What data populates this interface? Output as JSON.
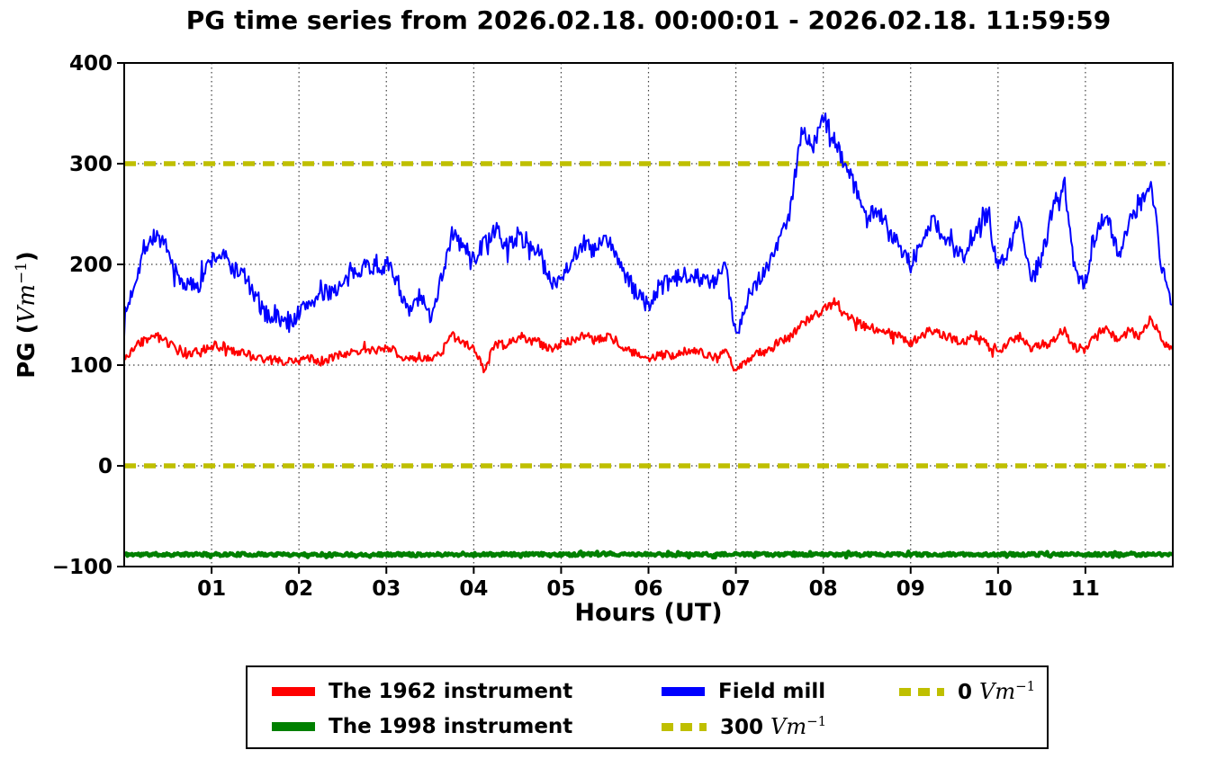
{
  "chart_data": {
    "type": "line",
    "title": "PG time series from 2026.02.18. 00:00:01 - 2026.02.18. 11:59:59",
    "xlabel": "Hours (UT)",
    "ylabel": {
      "prefix": "PG (",
      "unit": "Vm",
      "exp": "−1",
      "suffix": ")"
    },
    "xlim": [
      0,
      12
    ],
    "ylim": [
      -100,
      400
    ],
    "x_ticks": [
      {
        "v": 1,
        "label": "01"
      },
      {
        "v": 2,
        "label": "02"
      },
      {
        "v": 3,
        "label": "03"
      },
      {
        "v": 4,
        "label": "04"
      },
      {
        "v": 5,
        "label": "05"
      },
      {
        "v": 6,
        "label": "06"
      },
      {
        "v": 7,
        "label": "07"
      },
      {
        "v": 8,
        "label": "08"
      },
      {
        "v": 9,
        "label": "09"
      },
      {
        "v": 10,
        "label": "10"
      },
      {
        "v": 11,
        "label": "11"
      }
    ],
    "y_ticks": [
      {
        "v": 400,
        "label": "400"
      },
      {
        "v": 300,
        "label": "300"
      },
      {
        "v": 200,
        "label": "200"
      },
      {
        "v": 100,
        "label": "100"
      },
      {
        "v": 0,
        "label": "0"
      },
      {
        "v": -100,
        "label": "−100"
      }
    ],
    "grid": {
      "x_values": [
        1,
        2,
        3,
        4,
        5,
        6,
        7,
        8,
        9,
        10,
        11
      ],
      "y_values": [
        300,
        200,
        100,
        0
      ],
      "style": "dotted"
    },
    "ref_color": "#bfbf00",
    "ref_lines": [
      {
        "y": 300,
        "value": "300",
        "unit": "Vm",
        "exp": "−1"
      },
      {
        "y": 0,
        "value": "0",
        "unit": "Vm",
        "exp": "−1"
      }
    ],
    "series": [
      {
        "name": "The 1962 instrument",
        "color": "#ff0000",
        "width": 2.2,
        "step_hours": 0.125,
        "noise": 4.5,
        "seed": 3,
        "values": [
          105,
          118,
          126,
          128,
          122,
          113,
          112,
          113,
          120,
          118,
          113,
          112,
          108,
          104,
          106,
          103,
          105,
          107,
          104,
          108,
          110,
          114,
          116,
          114,
          118,
          112,
          103,
          108,
          105,
          112,
          130,
          122,
          118,
          95,
          122,
          120,
          127,
          125,
          122,
          115,
          122,
          125,
          130,
          125,
          128,
          125,
          115,
          110,
          105,
          110,
          110,
          113,
          115,
          112,
          108,
          115,
          92,
          105,
          112,
          115,
          122,
          128,
          140,
          148,
          155,
          162,
          150,
          143,
          138,
          135,
          130,
          128,
          122,
          130,
          135,
          130,
          126,
          122,
          130,
          120,
          113,
          122,
          128,
          115,
          120,
          123,
          135,
          118,
          115,
          130,
          138,
          122,
          135,
          128,
          148,
          125,
          115
        ]
      },
      {
        "name": "The 1998 instrument",
        "color": "#008000",
        "width": 4.5,
        "step_hours": 0.125,
        "noise": 1.6,
        "seed": 11,
        "constant": -88
      },
      {
        "name": "Field mill",
        "color": "#0000ff",
        "width": 2,
        "step_hours": 0.125,
        "noise": 9,
        "seed": 7,
        "values": [
          145,
          185,
          220,
          230,
          210,
          185,
          178,
          185,
          205,
          210,
          195,
          190,
          165,
          150,
          148,
          140,
          152,
          163,
          168,
          175,
          178,
          192,
          200,
          197,
          200,
          185,
          150,
          168,
          148,
          185,
          230,
          218,
          205,
          222,
          232,
          218,
          228,
          220,
          212,
          182,
          188,
          205,
          222,
          212,
          225,
          212,
          185,
          172,
          158,
          178,
          182,
          188,
          192,
          185,
          180,
          200,
          130,
          165,
          185,
          200,
          225,
          255,
          335,
          315,
          345,
          325,
          300,
          275,
          245,
          255,
          235,
          220,
          200,
          220,
          245,
          228,
          215,
          205,
          235,
          250,
          200,
          215,
          250,
          185,
          205,
          255,
          280,
          195,
          182,
          232,
          250,
          208,
          245,
          260,
          285,
          195,
          160
        ]
      }
    ],
    "legend": {
      "items": [
        {
          "label": "The 1962 instrument"
        },
        {
          "label": "The 1998 instrument"
        },
        {
          "label": "Field mill"
        },
        {
          "value": "300",
          "unit": "Vm",
          "exp": "−1"
        },
        {
          "value": "0",
          "unit": "Vm",
          "exp": "−1"
        }
      ]
    }
  }
}
